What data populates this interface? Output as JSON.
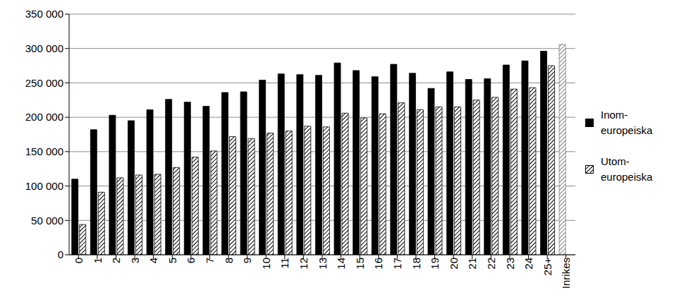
{
  "chart_data": {
    "type": "bar",
    "categories": [
      "0",
      "1",
      "2",
      "3",
      "4",
      "5",
      "6",
      "7",
      "8",
      "9",
      "10",
      "11",
      "12",
      "13",
      "14",
      "15",
      "16",
      "17",
      "18",
      "19",
      "20",
      "21",
      "22",
      "23",
      "24",
      "25+",
      "Inrikes"
    ],
    "series": [
      {
        "name": "Inom-europeiska",
        "color": "#000000",
        "values": [
          110000,
          182000,
          203000,
          195000,
          211000,
          226000,
          222000,
          216000,
          236000,
          237000,
          254000,
          263000,
          262000,
          261000,
          279000,
          268000,
          259000,
          277000,
          264000,
          242000,
          266000,
          255000,
          256000,
          276000,
          282000,
          296000,
          null
        ]
      },
      {
        "name": "Utom-europeiska",
        "color": "#000000",
        "line_style": "hatch",
        "values": [
          44000,
          91000,
          112000,
          116000,
          117000,
          127000,
          142000,
          151000,
          172000,
          169000,
          177000,
          180000,
          187000,
          186000,
          206000,
          199000,
          205000,
          221000,
          211000,
          215000,
          215000,
          225000,
          229000,
          241000,
          243000,
          275000,
          null
        ]
      },
      {
        "color": "#7f7f7f",
        "line_style": "hatch",
        "values": [
          null,
          null,
          null,
          null,
          null,
          null,
          null,
          null,
          null,
          null,
          null,
          null,
          null,
          null,
          null,
          null,
          null,
          null,
          null,
          null,
          null,
          null,
          null,
          null,
          null,
          null,
          306000
        ]
      }
    ],
    "ylim": [
      0,
      350000
    ],
    "yticks": [
      0,
      {
        "value": 50000,
        "label": "50 000"
      },
      {
        "value": 100000,
        "label": "100 000"
      },
      {
        "value": 150000,
        "label": "150 000"
      },
      {
        "value": 200000,
        "label": "200 000"
      },
      {
        "value": 250000,
        "label": "250 000"
      },
      {
        "value": 300000,
        "label": "300 000"
      },
      {
        "value": 350000,
        "label": "350 000"
      }
    ],
    "grid": true,
    "legend": "right"
  }
}
